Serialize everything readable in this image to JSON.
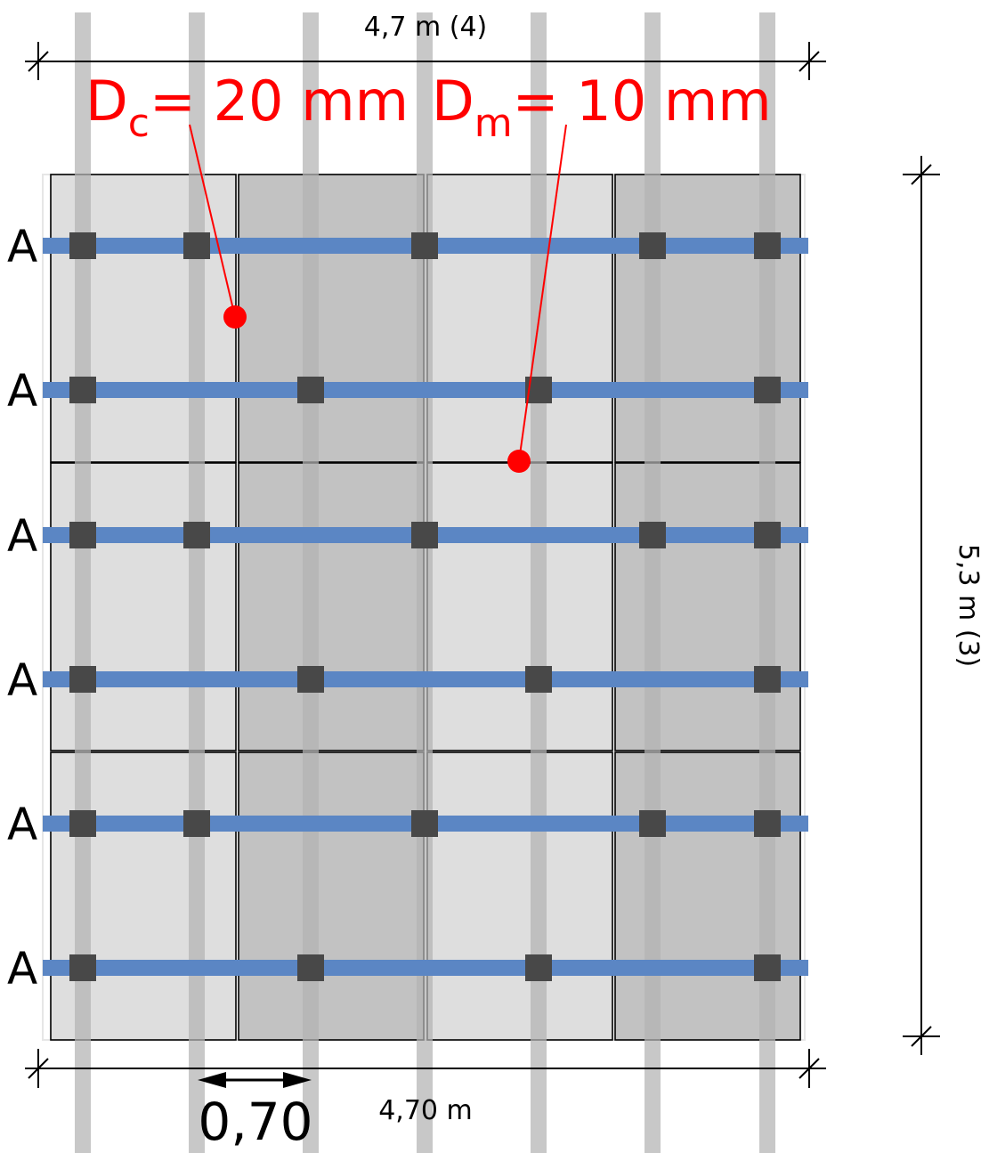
{
  "dimensions": {
    "top": "4,7 m (4)",
    "bottom": "4,70 m",
    "right": "5,3 m (3)",
    "spacing": "0,70"
  },
  "annotations": {
    "dc": {
      "base": "D",
      "sub": "c",
      "value": "= 20 mm"
    },
    "dm": {
      "base": "D",
      "sub": "m",
      "value": "= 10 mm"
    }
  },
  "row_label": "A",
  "rows": [
    {
      "label": "A",
      "anchors": [
        0,
        1,
        3,
        5,
        6
      ]
    },
    {
      "label": "A",
      "anchors": [
        0,
        2,
        4,
        6
      ]
    },
    {
      "label": "A",
      "anchors": [
        0,
        1,
        3,
        5,
        6
      ]
    },
    {
      "label": "A",
      "anchors": [
        0,
        2,
        4,
        6
      ]
    },
    {
      "label": "A",
      "anchors": [
        0,
        1,
        3,
        5,
        6
      ]
    },
    {
      "label": "A",
      "anchors": [
        0,
        2,
        4,
        6
      ]
    }
  ],
  "panels": {
    "columns": 4,
    "rows": 3
  },
  "colors": {
    "beam": "#5b86c4",
    "anchor": "#484848",
    "pole": "#b3b3b3",
    "panel_light": "#dedede",
    "panel_dark": "#c2c2c2",
    "annotation": "#ff0000"
  }
}
